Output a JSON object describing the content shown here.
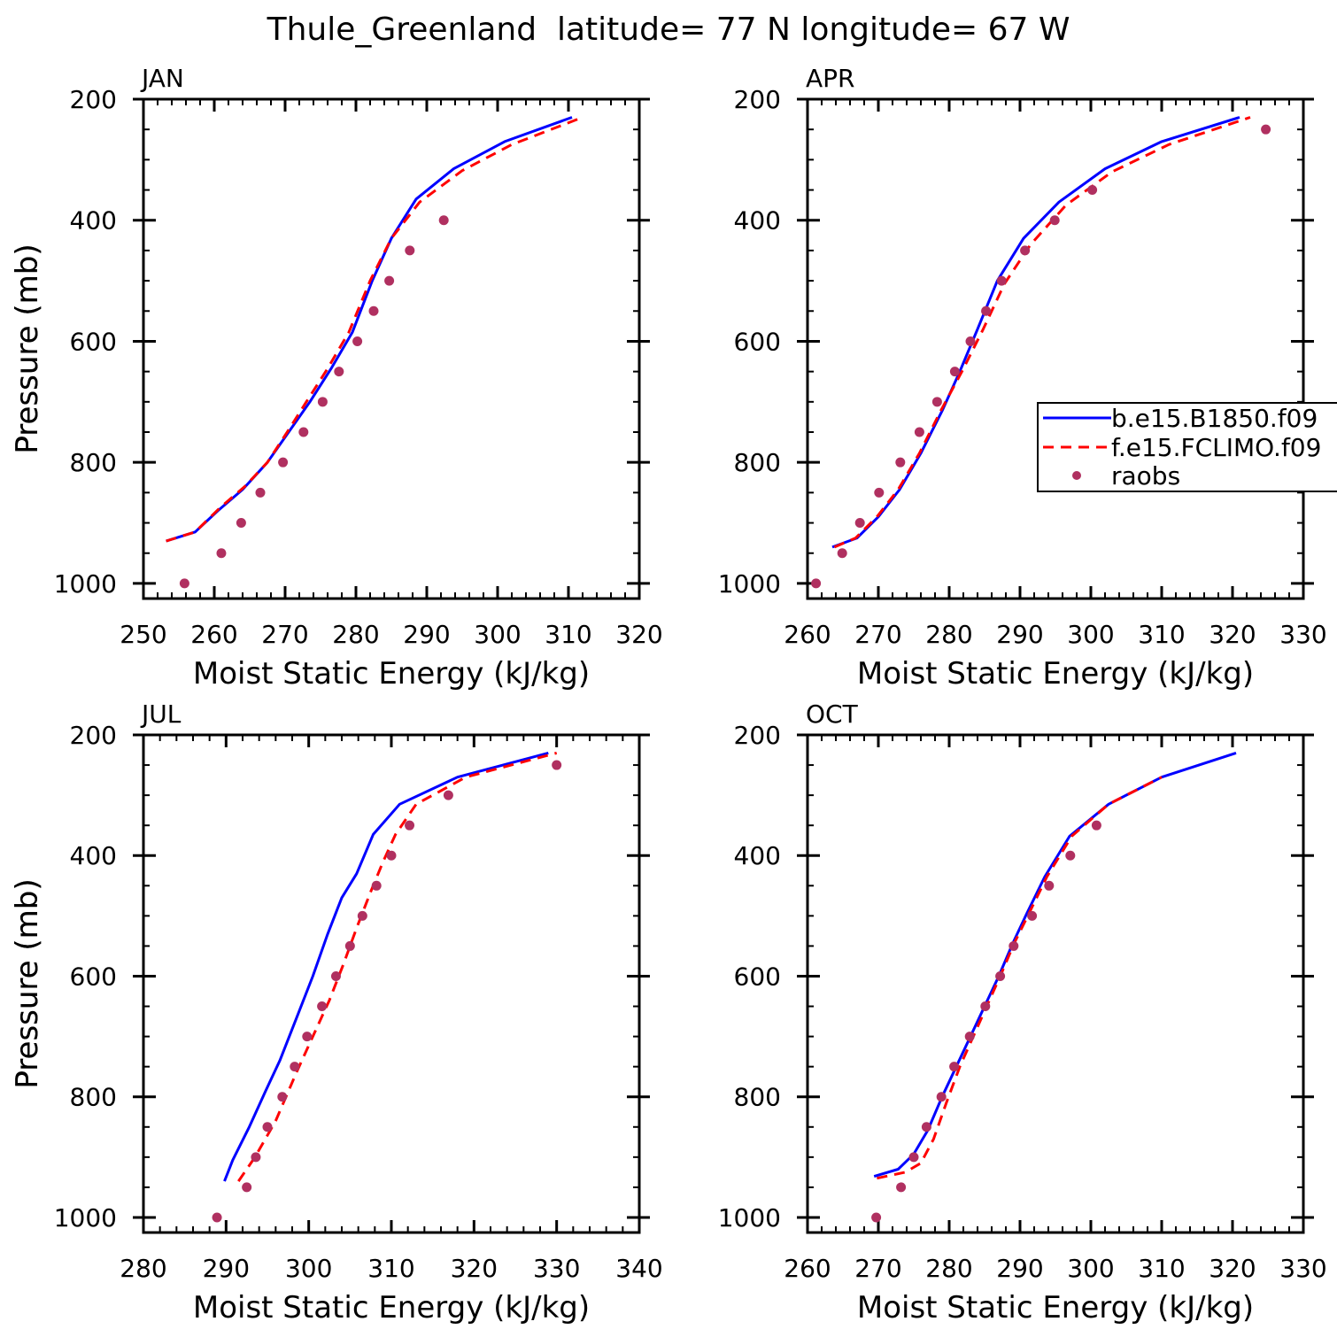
{
  "figure": {
    "title": "Thule_Greenland  latitude= 77 N longitude= 67 W"
  },
  "colors": {
    "model1": "#0000ff",
    "model2": "#ff0000",
    "obs": "#b03060"
  },
  "legend": {
    "placement": "right of APR panel",
    "entries": [
      {
        "label": "b.e15.B1850.f09",
        "style": "solid",
        "color_key": "model1"
      },
      {
        "label": "f.e15.FCLIMO.f09",
        "style": "dashed",
        "color_key": "model2"
      },
      {
        "label": "raobs",
        "style": "marker",
        "color_key": "obs"
      }
    ]
  },
  "chart_data": [
    {
      "type": "line",
      "title": "JAN",
      "xlabel": "Moist Static Energy (kJ/kg)",
      "ylabel": "Pressure (mb)",
      "xlim": [
        250,
        320
      ],
      "ylim": [
        200,
        1025
      ],
      "yreversed": true,
      "xticks": [
        250,
        260,
        270,
        280,
        290,
        300,
        310,
        320
      ],
      "yticks": [
        200,
        400,
        600,
        800,
        1000
      ],
      "series": [
        {
          "name": "b.e15.B1850.f09",
          "style": "solid",
          "color_key": "model1",
          "x": [
            253.2,
            257.3,
            260.5,
            264.0,
            267.5,
            270.5,
            273.5,
            276.5,
            279.5,
            282.3,
            285.0,
            288.5,
            293.8,
            301.0,
            310.5
          ],
          "y": [
            930,
            915,
            880,
            845,
            800,
            750,
            700,
            645,
            585,
            500,
            430,
            365,
            315,
            270,
            230
          ]
        },
        {
          "name": "f.e15.FCLIMO.f09",
          "style": "dashed",
          "color_key": "model2",
          "x": [
            253.2,
            257.3,
            260.8,
            264.3,
            267.5,
            270.3,
            273.0,
            276.0,
            279.0,
            282.0,
            285.0,
            289.0,
            295.0,
            302.0,
            312.0
          ],
          "y": [
            930,
            915,
            875,
            840,
            800,
            750,
            700,
            645,
            585,
            500,
            430,
            370,
            318,
            275,
            230
          ]
        },
        {
          "name": "raobs",
          "style": "marker",
          "color_key": "obs",
          "x": [
            255.8,
            261.0,
            263.8,
            266.5,
            269.7,
            272.6,
            275.3,
            277.6,
            280.2,
            282.5,
            284.7,
            287.6,
            292.4
          ],
          "y": [
            1000,
            950,
            900,
            850,
            800,
            750,
            700,
            650,
            600,
            550,
            500,
            450,
            400
          ]
        }
      ]
    },
    {
      "type": "line",
      "title": "APR",
      "xlabel": "Moist Static Energy (kJ/kg)",
      "ylabel": "Pressure (mb)",
      "xlim": [
        260,
        330
      ],
      "ylim": [
        200,
        1025
      ],
      "yreversed": true,
      "xticks": [
        260,
        270,
        280,
        290,
        300,
        310,
        320,
        330
      ],
      "yticks": [
        200,
        400,
        600,
        800,
        1000
      ],
      "series": [
        {
          "name": "b.e15.B1850.f09",
          "style": "solid",
          "color_key": "model1",
          "x": [
            263.5,
            267.0,
            270.0,
            273.0,
            276.0,
            279.0,
            281.5,
            284.0,
            286.8,
            290.5,
            295.5,
            302.0,
            310.0,
            321.0
          ],
          "y": [
            940,
            925,
            890,
            845,
            785,
            715,
            650,
            580,
            500,
            430,
            370,
            315,
            270,
            230
          ]
        },
        {
          "name": "f.e15.FCLIMO.f09",
          "style": "dashed",
          "color_key": "model2",
          "x": [
            263.8,
            266.8,
            269.8,
            272.8,
            275.8,
            278.8,
            281.8,
            284.8,
            287.8,
            291.5,
            296.5,
            303.0,
            311.0,
            322.5
          ],
          "y": [
            940,
            925,
            890,
            845,
            785,
            715,
            650,
            580,
            505,
            440,
            375,
            320,
            275,
            230
          ]
        },
        {
          "name": "raobs",
          "style": "marker",
          "color_key": "obs",
          "x": [
            261.2,
            264.9,
            267.4,
            270.1,
            273.1,
            275.8,
            278.3,
            280.8,
            283.0,
            285.2,
            287.4,
            290.7,
            294.9,
            300.2,
            324.7
          ],
          "y": [
            1000,
            950,
            900,
            850,
            800,
            750,
            700,
            650,
            600,
            550,
            500,
            450,
            400,
            350,
            250
          ]
        }
      ]
    },
    {
      "type": "line",
      "title": "JUL",
      "xlabel": "Moist Static Energy (kJ/kg)",
      "ylabel": "Pressure (mb)",
      "xlim": [
        280,
        340
      ],
      "ylim": [
        200,
        1025
      ],
      "yreversed": true,
      "xticks": [
        280,
        290,
        300,
        310,
        320,
        330,
        340
      ],
      "yticks": [
        200,
        400,
        600,
        800,
        1000
      ],
      "series": [
        {
          "name": "b.e15.B1850.f09",
          "style": "solid",
          "color_key": "model1",
          "x": [
            289.8,
            290.8,
            292.8,
            294.8,
            296.5,
            298.5,
            300.5,
            302.3,
            304.0,
            305.8,
            307.8,
            311.0,
            318.0,
            329.0
          ],
          "y": [
            940,
            905,
            850,
            790,
            740,
            670,
            600,
            530,
            470,
            430,
            365,
            315,
            270,
            230
          ]
        },
        {
          "name": "f.e15.FCLIMO.f09",
          "style": "dashed",
          "color_key": "model2",
          "x": [
            291.5,
            293.5,
            296.0,
            298.5,
            300.5,
            302.5,
            304.2,
            305.8,
            307.5,
            309.0,
            310.5,
            313.0,
            319.0,
            330.0
          ],
          "y": [
            940,
            900,
            840,
            760,
            700,
            640,
            580,
            520,
            460,
            410,
            365,
            315,
            270,
            230
          ]
        },
        {
          "name": "raobs",
          "style": "marker",
          "color_key": "obs",
          "x": [
            288.9,
            292.5,
            293.6,
            295.0,
            296.8,
            298.3,
            299.8,
            301.6,
            303.3,
            305.0,
            306.5,
            308.2,
            310.0,
            312.2,
            316.9,
            330.0
          ],
          "y": [
            1000,
            950,
            900,
            850,
            800,
            750,
            700,
            650,
            600,
            550,
            500,
            450,
            400,
            350,
            300,
            250
          ]
        }
      ]
    },
    {
      "type": "line",
      "title": "OCT",
      "xlabel": "Moist Static Energy (kJ/kg)",
      "ylabel": "Pressure (mb)",
      "xlim": [
        260,
        330
      ],
      "ylim": [
        200,
        1025
      ],
      "yreversed": true,
      "xticks": [
        260,
        270,
        280,
        290,
        300,
        310,
        320,
        330
      ],
      "yticks": [
        200,
        400,
        600,
        800,
        1000
      ],
      "series": [
        {
          "name": "b.e15.B1850.f09",
          "style": "solid",
          "color_key": "model1",
          "x": [
            269.4,
            272.8,
            275.0,
            277.0,
            279.0,
            281.0,
            283.0,
            285.0,
            287.0,
            289.0,
            291.0,
            293.5,
            297.0,
            302.5,
            310.0,
            320.5
          ],
          "y": [
            932,
            920,
            895,
            855,
            800,
            750,
            700,
            650,
            600,
            545,
            495,
            435,
            368,
            315,
            270,
            230
          ]
        },
        {
          "name": "f.e15.FCLIMO.f09",
          "style": "dashed",
          "color_key": "model2",
          "x": [
            269.8,
            273.8,
            276.0,
            277.8,
            279.6,
            281.5,
            283.4,
            285.3,
            287.2,
            289.2,
            291.3,
            293.8,
            297.3,
            302.5,
            310.0
          ],
          "y": [
            935,
            925,
            910,
            870,
            810,
            750,
            700,
            650,
            600,
            545,
            495,
            435,
            368,
            315,
            270
          ]
        },
        {
          "name": "raobs",
          "style": "marker",
          "color_key": "obs",
          "x": [
            269.7,
            273.2,
            275.0,
            276.8,
            278.9,
            280.7,
            282.9,
            285.1,
            287.2,
            289.1,
            291.7,
            294.1,
            297.1,
            300.8
          ],
          "y": [
            1000,
            950,
            900,
            850,
            800,
            750,
            700,
            650,
            600,
            550,
            500,
            450,
            400,
            350
          ]
        }
      ]
    }
  ]
}
